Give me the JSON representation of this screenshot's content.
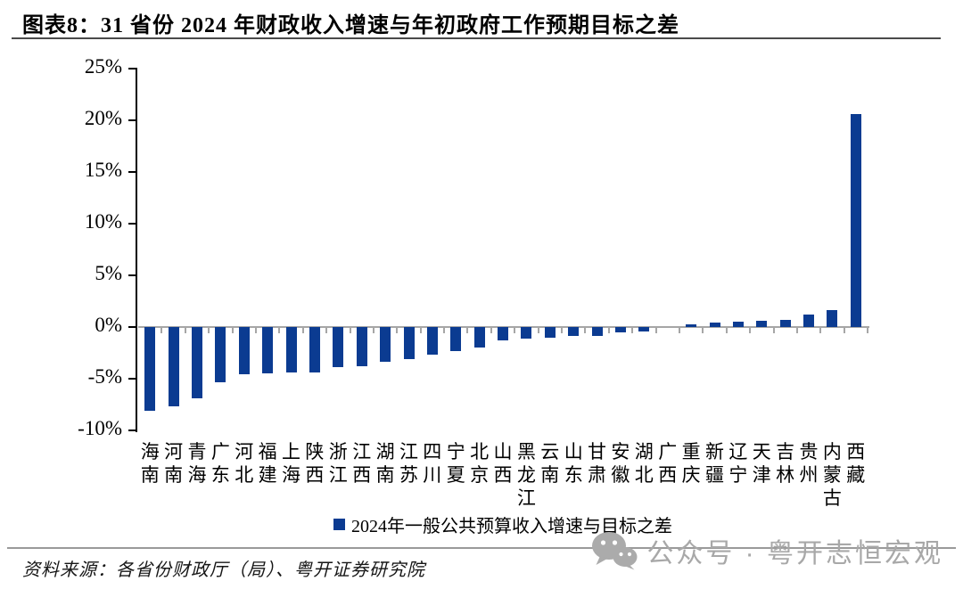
{
  "chart_data": {
    "type": "bar",
    "title": "图表8：31 省份 2024 年财政收入增速与年初政府工作预期目标之差",
    "categories": [
      "海南",
      "河南",
      "青海",
      "广东",
      "河北",
      "福建",
      "上海",
      "陕西",
      "浙江",
      "江西",
      "湖南",
      "江苏",
      "四川",
      "宁夏",
      "北京",
      "山西",
      "黑龙江",
      "云南",
      "山东",
      "甘肃",
      "安徽",
      "湖北",
      "广西",
      "重庆",
      "新疆",
      "辽宁",
      "天津",
      "吉林",
      "贵州",
      "内蒙古",
      "西藏"
    ],
    "series": [
      {
        "name": "2024年一般公共预算收入增速与目标之差",
        "values": [
          -8.1,
          -7.7,
          -6.9,
          -5.3,
          -4.6,
          -4.5,
          -4.4,
          -4.4,
          -3.9,
          -3.8,
          -3.4,
          -3.1,
          -2.7,
          -2.3,
          -2.0,
          -1.3,
          -1.1,
          -1.0,
          -0.9,
          -0.9,
          -0.5,
          -0.4,
          0.0,
          0.3,
          0.4,
          0.5,
          0.6,
          0.7,
          1.2,
          1.6,
          20.6
        ]
      }
    ],
    "xlabel": "",
    "ylabel": "",
    "unit": "%",
    "ylim": [
      -10,
      25
    ],
    "ytick_values": [
      25,
      20,
      15,
      10,
      5,
      0,
      -5,
      -10
    ],
    "ytick_labels": [
      "25%",
      "20%",
      "15%",
      "10%",
      "5%",
      "0%",
      "-5%",
      "-10%"
    ],
    "grid": false,
    "legend_position": "bottom",
    "bar_color": "#0B3B91",
    "axis_color": "#000000",
    "zero_line_color": "#A6A6A6"
  },
  "footer": {
    "source_note": "资料来源：各省份财政厅（局）、粤开证券研究院"
  },
  "watermark": {
    "text": "公众号 · 粤开志恒宏观"
  }
}
